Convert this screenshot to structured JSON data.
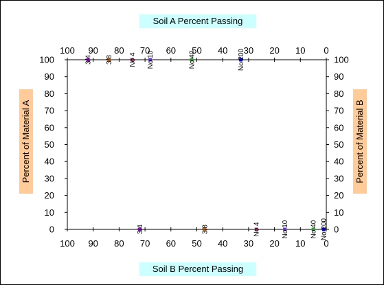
{
  "chart_data": {
    "type": "scatter",
    "title_top": "Soil A Percent Passing",
    "title_bottom": "Soil B Percent Passing",
    "ylabel_left": "Percent of Material A",
    "ylabel_right": "Percent of Material B",
    "x_top_ticks": [
      "100",
      "90",
      "80",
      "70",
      "60",
      "50",
      "40",
      "30",
      "20",
      "10",
      "0"
    ],
    "x_bottom_ticks": [
      "100",
      "90",
      "80",
      "70",
      "60",
      "50",
      "40",
      "30",
      "20",
      "10",
      "0"
    ],
    "y_left_ticks": [
      "0",
      "10",
      "20",
      "30",
      "40",
      "50",
      "60",
      "70",
      "80",
      "90",
      "100"
    ],
    "y_right_ticks": [
      "100",
      "90",
      "80",
      "70",
      "60",
      "50",
      "40",
      "30",
      "20",
      "10",
      "0"
    ],
    "xlim": [
      100,
      0
    ],
    "ylim": [
      0,
      100
    ],
    "grid": false,
    "colors": {
      "background": "#ffffff",
      "title_box": "#ccffff",
      "ylabel_box": "#ffcc99"
    },
    "soil_a_points": [
      {
        "label": "3/4",
        "x": 92,
        "y": 100,
        "color": "#9900cc"
      },
      {
        "label": "3/8",
        "x": 84,
        "y": 100,
        "color": "#cc6600"
      },
      {
        "label": "No 4",
        "x": 75,
        "y": 100,
        "color": "#993366"
      },
      {
        "label": "No 10",
        "x": 68,
        "y": 100,
        "color": "#6633cc"
      },
      {
        "label": "No 40",
        "x": 52,
        "y": 100,
        "color": "#339933"
      },
      {
        "label": "No 200",
        "x": 33,
        "y": 100,
        "color": "#0000cc"
      }
    ],
    "soil_b_points": [
      {
        "label": "3/4",
        "x": 72,
        "y": 0,
        "color": "#9900cc"
      },
      {
        "label": "3/8",
        "x": 47,
        "y": 0,
        "color": "#cc6600"
      },
      {
        "label": "No 4",
        "x": 27,
        "y": 0,
        "color": "#993366"
      },
      {
        "label": "No 10",
        "x": 16,
        "y": 0,
        "color": "#6633cc"
      },
      {
        "label": "No 40",
        "x": 5,
        "y": 0,
        "color": "#339933"
      },
      {
        "label": "No 200",
        "x": 1,
        "y": 0,
        "color": "#0000cc"
      }
    ]
  }
}
